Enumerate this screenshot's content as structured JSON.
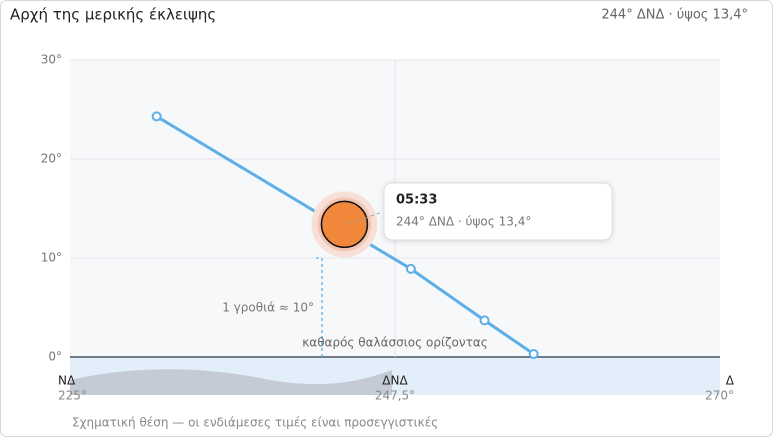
{
  "header": {
    "title": "Αρχή της μερικής έκλειψης",
    "summary": "244° ΔΝΔ · ύψος 13,4°"
  },
  "chart_data": {
    "type": "line",
    "x": [
      231,
      248.6,
      253.7,
      257.1
    ],
    "series": [
      {
        "color": "#5eaee8",
        "values": [
          24.3,
          8.9,
          3.7,
          0.3
        ]
      }
    ],
    "xlim": [
      225,
      270
    ],
    "xticks": [
      {
        "value": 225,
        "label": "225°"
      },
      {
        "value": 247.5,
        "label": "247,5°"
      },
      {
        "value": 270,
        "label": "270°"
      }
    ],
    "xtick_directions": [
      "ΝΔ",
      "ΔΝΔ",
      "Δ"
    ],
    "ylim": [
      0,
      30
    ],
    "yticks": [
      {
        "value": 0,
        "label": "0°"
      },
      {
        "value": 10,
        "label": "10°"
      },
      {
        "value": 20,
        "label": "20°"
      },
      {
        "value": 30,
        "label": "30°"
      }
    ],
    "grid": true,
    "sun": {
      "x": 244,
      "y": 13.4,
      "color": "#f0873a",
      "time": "05:33",
      "label": "244° ΔΝΔ · ύψος 13,4°"
    },
    "fist_annotation": "1 γροθιά ≈ 10°",
    "horizon_label": "καθαρός θαλάσσιος ορίζοντας",
    "footnote": "Σχηματική θέση — οι ενδιάμεσες τιμές είναι προσεγγιστικές"
  }
}
